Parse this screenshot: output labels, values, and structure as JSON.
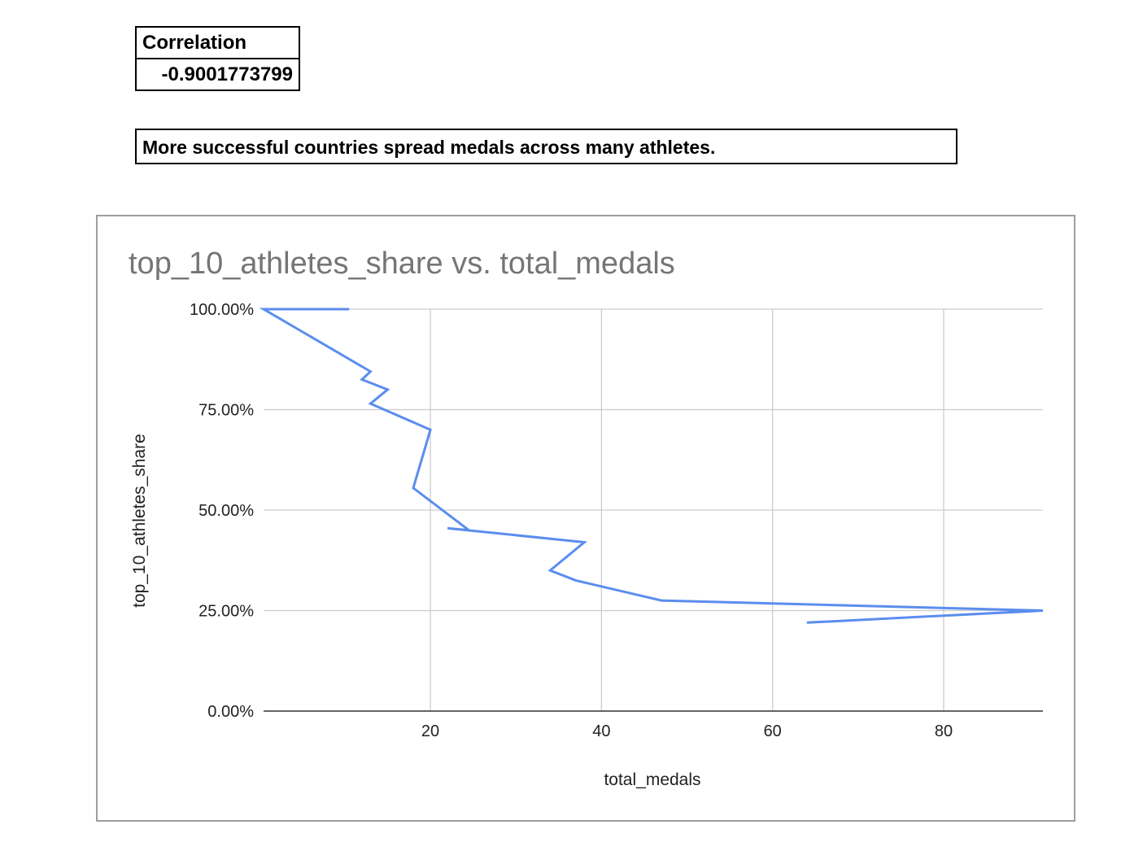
{
  "correlation": {
    "header": "Correlation",
    "value": "-0.9001773799"
  },
  "conclusion": "More successful countries spread medals across many athletes.",
  "colors": {
    "series_line": "#5b8def",
    "gridline": "#cccccc",
    "axis_line": "#333333",
    "title_text": "#757575",
    "frame_border": "#9e9e9e"
  },
  "chart_data": {
    "type": "line",
    "title": "top_10_athletes_share vs. total_medals",
    "xlabel": "total_medals",
    "ylabel": "top_10_athletes_share",
    "xlim": [
      0.5,
      91.6
    ],
    "ylim": [
      0,
      1
    ],
    "x_ticks": [
      20,
      40,
      60,
      80
    ],
    "x_tick_labels": [
      "20",
      "40",
      "60",
      "80"
    ],
    "y_ticks": [
      0,
      0.25,
      0.5,
      0.75,
      1.0
    ],
    "y_tick_labels": [
      "0.00%",
      "25.00%",
      "50.00%",
      "75.00%",
      "100.00%"
    ],
    "grid": true,
    "legend": "none",
    "series": [
      {
        "x": [
          10.5,
          0.5,
          13,
          12,
          15,
          13,
          20,
          18,
          24.5,
          22,
          38,
          34,
          37,
          47,
          91.6,
          64
        ],
        "y": [
          1.0,
          1.0,
          0.845,
          0.825,
          0.8,
          0.765,
          0.7,
          0.555,
          0.45,
          0.455,
          0.42,
          0.35,
          0.325,
          0.275,
          0.25,
          0.22
        ]
      }
    ]
  }
}
